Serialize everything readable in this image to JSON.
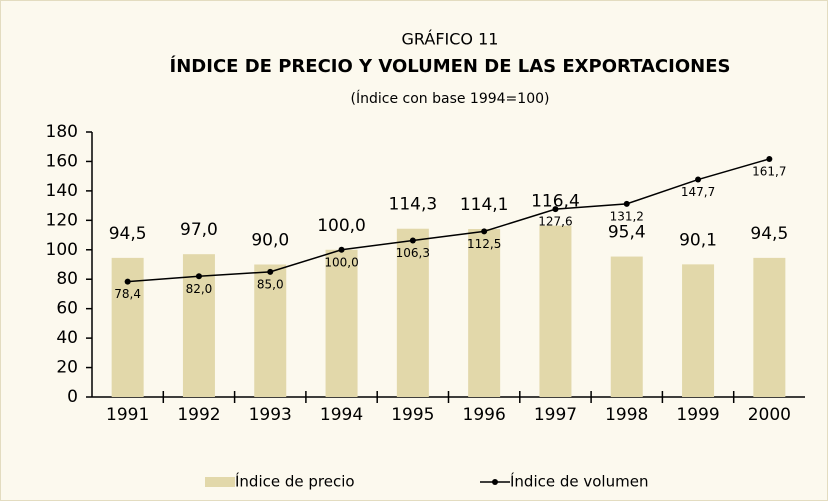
{
  "chart_data": {
    "type": "bar",
    "title": "GRÁFICO 11",
    "subtitle": "ÍNDICE DE PRECIO Y VOLUMEN DE LAS EXPORTACIONES",
    "note": "(Índice con base 1994=100)",
    "categories": [
      "1991",
      "1992",
      "1993",
      "1994",
      "1995",
      "1996",
      "1997",
      "1998",
      "1999",
      "2000"
    ],
    "series": [
      {
        "name": "Índice de precio",
        "type": "bar",
        "color": "#e2d8aa",
        "values": [
          94.5,
          97.0,
          90.0,
          100.0,
          114.3,
          114.1,
          116.4,
          95.4,
          90.1,
          94.5
        ],
        "value_labels": [
          "94,5",
          "97,0",
          "90,0",
          "100,0",
          "114,3",
          "114,1",
          "116,4",
          "95,4",
          "90,1",
          "94,5"
        ]
      },
      {
        "name": "Índice de volumen",
        "type": "line",
        "color": "#000000",
        "values": [
          78.4,
          82.0,
          85.0,
          100.0,
          106.3,
          112.5,
          127.6,
          131.2,
          147.7,
          161.7
        ],
        "value_labels": [
          "78,4",
          "82,0",
          "85,0",
          "100,0",
          "106,3",
          "112,5",
          "127,6",
          "131,2",
          "147,7",
          "161,7"
        ]
      }
    ],
    "ylim": [
      0,
      180
    ],
    "yticks": [
      0,
      20,
      40,
      60,
      80,
      100,
      120,
      140,
      160,
      180
    ],
    "grid": false,
    "legend": "bottom"
  }
}
